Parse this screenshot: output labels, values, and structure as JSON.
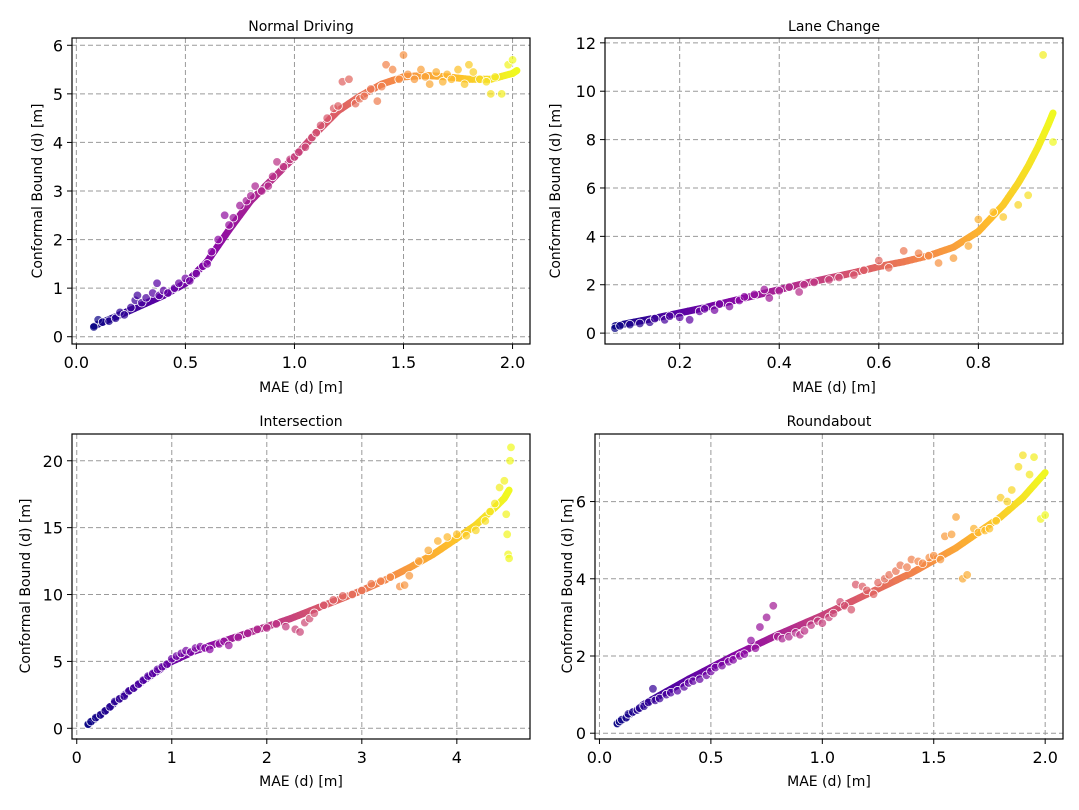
{
  "colors": {
    "grid": "#9a9a9a",
    "axis": "#000000",
    "scatter_stroke": "#ffffff"
  },
  "chart_data": [
    {
      "type": "scatter",
      "title": "Normal Driving",
      "xlabel": "MAE (d) [m]",
      "ylabel": "Conformal Bound (d) [m]",
      "xlim": [
        -0.02,
        2.08
      ],
      "ylim": [
        -0.15,
        6.15
      ],
      "xticks": [
        0.0,
        0.5,
        1.0,
        1.5,
        2.0
      ],
      "xtick_labels": [
        "0.0",
        "0.5",
        "1.0",
        "1.5",
        "2.0"
      ],
      "yticks": [
        0,
        1,
        2,
        3,
        4,
        5,
        6
      ],
      "ytick_labels": [
        "0",
        "1",
        "2",
        "3",
        "4",
        "5",
        "6"
      ],
      "fit_curve": {
        "name": "fit",
        "x": [
          0.08,
          0.2,
          0.3,
          0.4,
          0.5,
          0.6,
          0.7,
          0.8,
          0.9,
          1.0,
          1.1,
          1.2,
          1.3,
          1.4,
          1.5,
          1.6,
          1.7,
          1.8,
          1.9,
          2.0,
          2.02
        ],
        "y": [
          0.22,
          0.45,
          0.65,
          0.85,
          1.1,
          1.55,
          2.2,
          2.8,
          3.25,
          3.7,
          4.2,
          4.65,
          4.95,
          5.2,
          5.35,
          5.38,
          5.35,
          5.3,
          5.3,
          5.42,
          5.48
        ]
      },
      "points": {
        "name": "samples",
        "x": [
          0.08,
          0.1,
          0.12,
          0.15,
          0.18,
          0.2,
          0.22,
          0.25,
          0.27,
          0.28,
          0.3,
          0.32,
          0.35,
          0.37,
          0.38,
          0.4,
          0.42,
          0.45,
          0.47,
          0.5,
          0.52,
          0.55,
          0.58,
          0.6,
          0.62,
          0.65,
          0.68,
          0.7,
          0.72,
          0.75,
          0.78,
          0.8,
          0.82,
          0.85,
          0.88,
          0.9,
          0.92,
          0.95,
          0.98,
          1.0,
          1.02,
          1.05,
          1.08,
          1.1,
          1.12,
          1.15,
          1.18,
          1.2,
          1.22,
          1.25,
          1.28,
          1.3,
          1.32,
          1.35,
          1.38,
          1.4,
          1.42,
          1.45,
          1.48,
          1.5,
          1.52,
          1.55,
          1.58,
          1.6,
          1.62,
          1.65,
          1.68,
          1.7,
          1.72,
          1.75,
          1.78,
          1.8,
          1.82,
          1.85,
          1.88,
          1.9,
          1.92,
          1.95,
          1.98,
          2.0
        ],
        "y": [
          0.2,
          0.35,
          0.3,
          0.32,
          0.38,
          0.5,
          0.45,
          0.6,
          0.75,
          0.85,
          0.7,
          0.8,
          0.9,
          1.1,
          0.85,
          0.95,
          0.9,
          1.0,
          1.1,
          1.2,
          1.15,
          1.3,
          1.45,
          1.5,
          1.75,
          2.0,
          2.5,
          2.3,
          2.45,
          2.7,
          2.8,
          2.9,
          3.1,
          3.0,
          3.1,
          3.3,
          3.6,
          3.5,
          3.65,
          3.7,
          3.8,
          3.9,
          4.1,
          4.2,
          4.35,
          4.5,
          4.7,
          4.75,
          5.25,
          5.3,
          4.8,
          4.9,
          4.95,
          5.1,
          4.85,
          5.15,
          5.6,
          5.5,
          5.3,
          5.8,
          5.4,
          5.3,
          5.5,
          5.35,
          5.2,
          5.45,
          5.25,
          5.4,
          5.3,
          5.5,
          5.2,
          5.6,
          5.45,
          5.3,
          5.25,
          5.0,
          5.35,
          5.0,
          5.6,
          5.7
        ]
      }
    },
    {
      "type": "scatter",
      "title": "Lane Change",
      "xlabel": "MAE (d) [m]",
      "ylabel": "Conformal Bound (d) [m]",
      "xlim": [
        0.05,
        0.97
      ],
      "ylim": [
        -0.45,
        12.2
      ],
      "xticks": [
        0.2,
        0.4,
        0.6,
        0.8
      ],
      "xtick_labels": [
        "0.2",
        "0.4",
        "0.6",
        "0.8"
      ],
      "yticks": [
        0,
        2,
        4,
        6,
        8,
        10,
        12
      ],
      "ytick_labels": [
        "0",
        "2",
        "4",
        "6",
        "8",
        "10",
        "12"
      ],
      "fit_curve": {
        "name": "fit",
        "x": [
          0.07,
          0.15,
          0.25,
          0.35,
          0.45,
          0.55,
          0.6,
          0.65,
          0.7,
          0.75,
          0.8,
          0.85,
          0.88,
          0.9,
          0.92,
          0.94,
          0.95
        ],
        "y": [
          0.3,
          0.62,
          1.05,
          1.55,
          2.05,
          2.5,
          2.75,
          2.95,
          3.2,
          3.55,
          4.2,
          5.3,
          6.2,
          6.9,
          7.7,
          8.6,
          9.1
        ]
      },
      "points": {
        "name": "samples",
        "x": [
          0.07,
          0.08,
          0.1,
          0.12,
          0.14,
          0.15,
          0.17,
          0.18,
          0.2,
          0.22,
          0.24,
          0.25,
          0.27,
          0.28,
          0.3,
          0.32,
          0.33,
          0.35,
          0.37,
          0.38,
          0.4,
          0.42,
          0.44,
          0.45,
          0.47,
          0.5,
          0.52,
          0.55,
          0.57,
          0.6,
          0.62,
          0.65,
          0.68,
          0.7,
          0.72,
          0.75,
          0.78,
          0.8,
          0.83,
          0.85,
          0.88,
          0.9,
          0.93,
          0.95
        ],
        "y": [
          0.2,
          0.3,
          0.35,
          0.4,
          0.45,
          0.6,
          0.55,
          0.7,
          0.65,
          0.55,
          0.9,
          1.0,
          0.95,
          1.2,
          1.1,
          1.35,
          1.5,
          1.6,
          1.8,
          1.45,
          1.75,
          1.9,
          1.7,
          2.0,
          2.1,
          2.2,
          2.3,
          2.4,
          2.6,
          3.0,
          2.7,
          3.4,
          3.3,
          3.2,
          2.9,
          3.1,
          3.6,
          4.7,
          5.0,
          4.8,
          5.3,
          5.7,
          11.5,
          7.9
        ]
      }
    },
    {
      "type": "scatter",
      "title": "Intersection",
      "xlabel": "MAE (d) [m]",
      "ylabel": "Conformal Bound (d) [m]",
      "xlim": [
        -0.05,
        4.77
      ],
      "ylim": [
        -0.8,
        22.0
      ],
      "xticks": [
        0,
        1,
        2,
        3,
        4
      ],
      "xtick_labels": [
        "0",
        "1",
        "2",
        "3",
        "4"
      ],
      "yticks": [
        0,
        5,
        10,
        15,
        20
      ],
      "ytick_labels": [
        "0",
        "5",
        "10",
        "15",
        "20"
      ],
      "fit_curve": {
        "name": "fit",
        "x": [
          0.12,
          0.3,
          0.5,
          0.75,
          1.0,
          1.25,
          1.5,
          1.75,
          2.0,
          2.25,
          2.5,
          2.75,
          3.0,
          3.25,
          3.5,
          3.75,
          4.0,
          4.2,
          4.4,
          4.5,
          4.55
        ],
        "y": [
          0.3,
          1.3,
          2.5,
          3.8,
          5.0,
          5.8,
          6.4,
          7.0,
          7.6,
          8.2,
          8.9,
          9.6,
          10.3,
          11.1,
          12.0,
          13.0,
          14.2,
          15.2,
          16.5,
          17.2,
          17.8
        ]
      },
      "points": {
        "name": "samples",
        "x": [
          0.12,
          0.15,
          0.2,
          0.25,
          0.3,
          0.35,
          0.4,
          0.45,
          0.5,
          0.55,
          0.6,
          0.65,
          0.7,
          0.75,
          0.8,
          0.85,
          0.9,
          0.95,
          1.0,
          1.05,
          1.1,
          1.15,
          1.2,
          1.25,
          1.3,
          1.35,
          1.4,
          1.5,
          1.55,
          1.6,
          1.7,
          1.8,
          1.9,
          2.0,
          2.1,
          2.2,
          2.3,
          2.35,
          2.4,
          2.45,
          2.5,
          2.6,
          2.7,
          2.8,
          2.9,
          3.0,
          3.1,
          3.2,
          3.3,
          3.4,
          3.45,
          3.5,
          3.6,
          3.7,
          3.8,
          3.9,
          4.0,
          4.1,
          4.2,
          4.3,
          4.35,
          4.4,
          4.45,
          4.5,
          4.52,
          4.53,
          4.54,
          4.55,
          4.56,
          4.57
        ],
        "y": [
          0.3,
          0.5,
          0.8,
          1.0,
          1.3,
          1.6,
          2.0,
          2.2,
          2.4,
          2.8,
          3.0,
          3.3,
          3.6,
          3.9,
          4.1,
          4.4,
          4.6,
          4.8,
          5.2,
          5.4,
          5.6,
          5.8,
          5.7,
          6.0,
          6.1,
          6.0,
          5.9,
          6.3,
          6.5,
          6.2,
          6.8,
          7.1,
          7.4,
          7.5,
          7.8,
          7.6,
          7.4,
          7.2,
          7.9,
          8.2,
          8.6,
          9.2,
          9.6,
          9.9,
          10.0,
          10.3,
          10.8,
          11.0,
          11.3,
          10.6,
          10.7,
          11.4,
          12.5,
          13.3,
          14.0,
          14.3,
          14.5,
          14.4,
          14.8,
          15.5,
          16.2,
          16.8,
          18.0,
          18.5,
          16.0,
          14.5,
          13.0,
          12.7,
          20.0,
          21.0
        ]
      }
    },
    {
      "type": "scatter",
      "title": "Roundabout",
      "xlabel": "MAE (d) [m]",
      "ylabel": "Conformal Bound (d) [m]",
      "xlim": [
        -0.02,
        2.08
      ],
      "ylim": [
        -0.15,
        7.75
      ],
      "xticks": [
        0.0,
        0.5,
        1.0,
        1.5,
        2.0
      ],
      "xtick_labels": [
        "0.0",
        "0.5",
        "1.0",
        "1.5",
        "2.0"
      ],
      "yticks": [
        0,
        2,
        4,
        6
      ],
      "ytick_labels": [
        "0",
        "2",
        "4",
        "6"
      ],
      "fit_curve": {
        "name": "fit",
        "x": [
          0.08,
          0.2,
          0.4,
          0.6,
          0.8,
          1.0,
          1.2,
          1.4,
          1.6,
          1.8,
          1.9,
          2.0
        ],
        "y": [
          0.25,
          0.75,
          1.4,
          2.0,
          2.55,
          3.05,
          3.6,
          4.15,
          4.8,
          5.6,
          6.1,
          6.75
        ]
      },
      "points": {
        "name": "samples",
        "x": [
          0.08,
          0.09,
          0.1,
          0.12,
          0.13,
          0.15,
          0.17,
          0.18,
          0.2,
          0.22,
          0.24,
          0.25,
          0.27,
          0.3,
          0.32,
          0.35,
          0.38,
          0.4,
          0.42,
          0.45,
          0.48,
          0.5,
          0.52,
          0.55,
          0.58,
          0.6,
          0.63,
          0.65,
          0.68,
          0.7,
          0.72,
          0.75,
          0.78,
          0.8,
          0.82,
          0.85,
          0.88,
          0.9,
          0.92,
          0.95,
          0.98,
          1.0,
          1.03,
          1.05,
          1.08,
          1.1,
          1.13,
          1.15,
          1.18,
          1.2,
          1.23,
          1.25,
          1.28,
          1.3,
          1.33,
          1.35,
          1.38,
          1.4,
          1.43,
          1.45,
          1.48,
          1.5,
          1.53,
          1.55,
          1.58,
          1.6,
          1.63,
          1.65,
          1.68,
          1.7,
          1.73,
          1.75,
          1.78,
          1.8,
          1.83,
          1.85,
          1.88,
          1.9,
          1.93,
          1.95,
          1.98,
          2.0
        ],
        "y": [
          0.25,
          0.3,
          0.35,
          0.4,
          0.5,
          0.55,
          0.6,
          0.65,
          0.7,
          0.8,
          1.15,
          0.85,
          0.9,
          1.0,
          1.05,
          1.1,
          1.2,
          1.3,
          1.35,
          1.4,
          1.5,
          1.6,
          1.7,
          1.75,
          1.85,
          1.9,
          2.0,
          2.05,
          2.4,
          2.2,
          2.75,
          3.0,
          3.3,
          2.5,
          2.45,
          2.5,
          2.6,
          2.55,
          2.65,
          2.8,
          2.9,
          2.85,
          3.0,
          3.1,
          3.4,
          3.3,
          3.2,
          3.85,
          3.8,
          3.7,
          3.6,
          3.9,
          4.0,
          4.1,
          4.2,
          4.35,
          4.3,
          4.5,
          4.45,
          4.4,
          4.55,
          4.6,
          4.5,
          5.1,
          5.15,
          5.6,
          4.0,
          4.1,
          5.3,
          5.2,
          5.25,
          5.3,
          5.5,
          6.1,
          6.0,
          6.3,
          6.9,
          7.2,
          6.7,
          7.15,
          5.55,
          5.65
        ]
      }
    }
  ]
}
